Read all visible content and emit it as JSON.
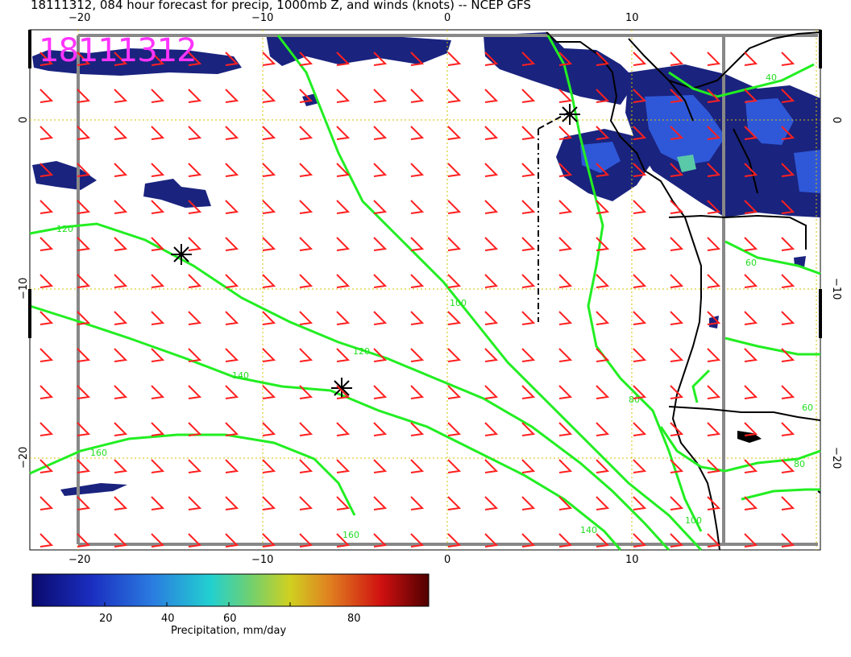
{
  "title": "18111312, 084 hour forecast for precip, 1000mb Z, and winds (knots) -- NCEP GFS",
  "stamp": "18111312",
  "axes": {
    "x_ticks": [
      "−20",
      "−10",
      "0",
      "10"
    ],
    "y_ticks": [
      "0",
      "−10",
      "−20"
    ]
  },
  "contours": [
    "120",
    "140",
    "160",
    "100",
    "80",
    "60",
    "40"
  ],
  "colorbar": {
    "label": "Precipitation, mm/day",
    "ticks": [
      "20",
      "40",
      "60",
      "80"
    ]
  },
  "colors": {
    "wind": "#ff2020",
    "contour": "#22ee22",
    "precip_dark": "#1a237e",
    "precip_mid": "#2f58d8",
    "grid": "#d4c000",
    "stamp": "#ff33ff"
  }
}
